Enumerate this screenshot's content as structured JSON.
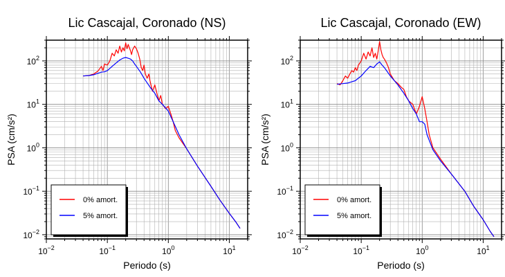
{
  "chart_data": [
    {
      "type": "line",
      "title": "Lic Cascajal, Coronado (NS)",
      "xlabel": "Periodo (s)",
      "ylabel": "PSA (cm/s²)",
      "xscale": "log",
      "yscale": "log",
      "xlim": [
        0.01,
        20
      ],
      "ylim": [
        0.008,
        300
      ],
      "grid": true,
      "legend": "bottom-left",
      "series": [
        {
          "name": "0% amort.",
          "color": "#ff0000",
          "x": [
            0.04,
            0.05,
            0.06,
            0.07,
            0.08,
            0.085,
            0.09,
            0.1,
            0.11,
            0.12,
            0.13,
            0.14,
            0.15,
            0.16,
            0.17,
            0.18,
            0.19,
            0.2,
            0.21,
            0.22,
            0.23,
            0.24,
            0.25,
            0.26,
            0.28,
            0.3,
            0.32,
            0.34,
            0.36,
            0.38,
            0.4,
            0.42,
            0.45,
            0.48,
            0.5,
            0.55,
            0.6,
            0.65,
            0.7,
            0.75,
            0.8,
            0.9,
            1.0,
            1.1,
            1.2,
            1.3,
            1.5,
            2,
            3,
            5,
            7,
            10,
            13,
            15
          ],
          "y": [
            45,
            46,
            50,
            58,
            75,
            60,
            85,
            80,
            100,
            150,
            130,
            180,
            150,
            220,
            160,
            200,
            170,
            260,
            190,
            240,
            200,
            170,
            140,
            180,
            220,
            190,
            150,
            110,
            70,
            60,
            80,
            50,
            40,
            50,
            35,
            20,
            28,
            18,
            12,
            16,
            10,
            8,
            9,
            6,
            4,
            2.5,
            1.7,
            0.95,
            0.38,
            0.13,
            0.063,
            0.031,
            0.019,
            0.014
          ]
        },
        {
          "name": "5% amort.",
          "color": "#0000ff",
          "x": [
            0.04,
            0.05,
            0.06,
            0.07,
            0.08,
            0.09,
            0.1,
            0.12,
            0.14,
            0.16,
            0.18,
            0.2,
            0.22,
            0.24,
            0.26,
            0.28,
            0.3,
            0.35,
            0.4,
            0.5,
            0.6,
            0.7,
            0.8,
            1.0,
            1.2,
            1.5,
            2,
            3,
            5,
            7,
            10,
            13,
            15
          ],
          "y": [
            45,
            46,
            48,
            52,
            55,
            56,
            60,
            75,
            90,
            105,
            115,
            120,
            115,
            110,
            100,
            85,
            75,
            55,
            40,
            25,
            18,
            12,
            10,
            7,
            4,
            2,
            0.95,
            0.38,
            0.13,
            0.063,
            0.031,
            0.019,
            0.014
          ]
        }
      ]
    },
    {
      "type": "line",
      "title": "Lic Cascajal, Coronado (EW)",
      "xlabel": "Periodo (s)",
      "ylabel": "PSA (cm/s²)",
      "xscale": "log",
      "yscale": "log",
      "xlim": [
        0.01,
        20
      ],
      "ylim": [
        0.008,
        300
      ],
      "grid": true,
      "legend": "bottom-left",
      "series": [
        {
          "name": "0% amort.",
          "color": "#ff0000",
          "x": [
            0.04,
            0.045,
            0.05,
            0.055,
            0.06,
            0.065,
            0.07,
            0.075,
            0.08,
            0.085,
            0.09,
            0.1,
            0.11,
            0.12,
            0.13,
            0.14,
            0.15,
            0.16,
            0.17,
            0.18,
            0.19,
            0.2,
            0.21,
            0.22,
            0.23,
            0.24,
            0.26,
            0.28,
            0.3,
            0.35,
            0.4,
            0.45,
            0.5,
            0.55,
            0.6,
            0.7,
            0.8,
            0.9,
            1.0,
            1.1,
            1.2,
            1.3,
            1.5,
            2,
            3,
            5,
            7,
            10,
            13,
            15
          ],
          "y": [
            30,
            28,
            35,
            45,
            40,
            50,
            60,
            55,
            70,
            60,
            80,
            100,
            150,
            110,
            160,
            130,
            200,
            120,
            150,
            110,
            170,
            280,
            180,
            140,
            120,
            110,
            90,
            70,
            50,
            35,
            30,
            25,
            22,
            15,
            12,
            10,
            6,
            9,
            15,
            8,
            4,
            2,
            1,
            0.55,
            0.25,
            0.1,
            0.045,
            0.022,
            0.012,
            0.009
          ]
        },
        {
          "name": "5% amort.",
          "color": "#0000ff",
          "x": [
            0.04,
            0.05,
            0.06,
            0.07,
            0.08,
            0.09,
            0.1,
            0.12,
            0.14,
            0.16,
            0.18,
            0.2,
            0.22,
            0.24,
            0.26,
            0.3,
            0.35,
            0.4,
            0.5,
            0.6,
            0.7,
            0.8,
            0.9,
            1.0,
            1.1,
            1.2,
            1.5,
            2,
            3,
            5,
            7,
            10,
            13,
            15
          ],
          "y": [
            29,
            30,
            31,
            33,
            35,
            40,
            45,
            60,
            75,
            70,
            85,
            95,
            80,
            70,
            60,
            45,
            35,
            28,
            18,
            12,
            8,
            6,
            4,
            4,
            3.5,
            2,
            0.9,
            0.5,
            0.25,
            0.1,
            0.045,
            0.022,
            0.012,
            0.009
          ]
        }
      ]
    }
  ]
}
